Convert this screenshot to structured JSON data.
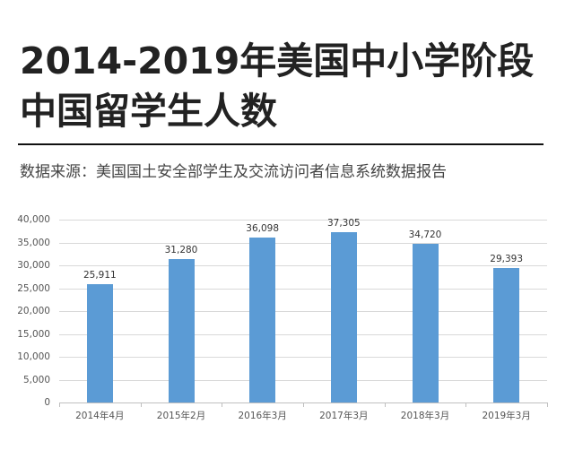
{
  "header": {
    "title_line1": "2014-2019年美国中小学阶段",
    "title_line2": "中国留学生人数",
    "source": "数据来源：美国国土安全部学生及交流访问者信息系统数据报告"
  },
  "colors": {
    "bar": "#5b9bd5",
    "title": "#222222",
    "grid": "#d9d9d9"
  },
  "chart_data": {
    "type": "bar",
    "title": "2014-2019年美国中小学阶段中国留学生人数",
    "subtitle": "数据来源：美国国土安全部学生及交流访问者信息系统数据报告",
    "categories": [
      "2014年4月",
      "2015年2月",
      "2016年3月",
      "2017年3月",
      "2018年3月",
      "2019年3月"
    ],
    "values": [
      25911,
      31280,
      36098,
      37305,
      34720,
      29393
    ],
    "value_labels": [
      "25,911",
      "31,280",
      "36,098",
      "37,305",
      "34,720",
      "29,393"
    ],
    "xlabel": "",
    "ylabel": "",
    "ylim": [
      0,
      40000
    ],
    "yticks": [
      0,
      5000,
      10000,
      15000,
      20000,
      25000,
      30000,
      35000,
      40000
    ],
    "ytick_labels": [
      "0",
      "5,000",
      "10,000",
      "15,000",
      "20,000",
      "25,000",
      "30,000",
      "35,000",
      "40,000"
    ],
    "grid": true,
    "legend": "none"
  }
}
